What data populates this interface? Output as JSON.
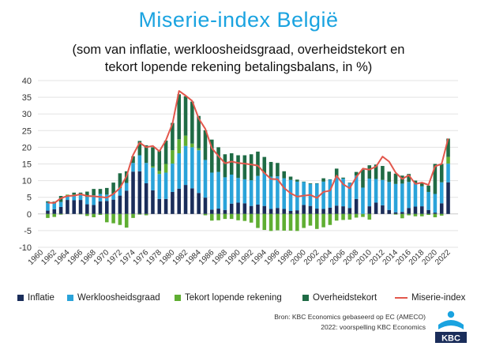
{
  "title": "Miserie-index België",
  "subtitle_line1": "(som van inflatie, werkloosheidsgraad, overheidstekort en",
  "subtitle_line2": "tekort lopende rekening betalingsbalans, in %)",
  "source_line1": "Bron: KBC Economics gebaseerd op EC (AMECO)",
  "source_line2": "2022: voorspelling KBC Economics",
  "logo_text": "KBC",
  "colors": {
    "inflatie": "#1a2d5a",
    "werkloosheid": "#2aa3d9",
    "tekort_lopende": "#5fae32",
    "overheid": "#1f6b45",
    "miserie": "#e2574c",
    "title": "#1aa3e0"
  },
  "chart_data": {
    "type": "bar",
    "stacked": true,
    "ylim": [
      -10,
      40
    ],
    "yticks": [
      -10,
      -5,
      0,
      5,
      10,
      15,
      20,
      25,
      30,
      35,
      40
    ],
    "grid": true,
    "legend_position": "bottom",
    "x_tick_labels": [
      "1960",
      "1962",
      "1964",
      "1966",
      "1968",
      "1970",
      "1972",
      "1974",
      "1976",
      "1978",
      "1980",
      "1982",
      "1984",
      "1986",
      "1988",
      "1990",
      "1992",
      "1994",
      "1996",
      "1998",
      "2000",
      "2002",
      "2004",
      "2006",
      "2008",
      "2010",
      "2012",
      "2014",
      "2016",
      "2018",
      "2020",
      "2022"
    ],
    "x": [
      1961,
      1962,
      1963,
      1964,
      1965,
      1966,
      1967,
      1968,
      1969,
      1970,
      1971,
      1972,
      1973,
      1974,
      1975,
      1976,
      1977,
      1978,
      1979,
      1980,
      1981,
      1982,
      1983,
      1984,
      1985,
      1986,
      1987,
      1988,
      1989,
      1990,
      1991,
      1992,
      1993,
      1994,
      1995,
      1996,
      1997,
      1998,
      1999,
      2000,
      2001,
      2002,
      2003,
      2004,
      2005,
      2006,
      2007,
      2008,
      2009,
      2010,
      2011,
      2012,
      2013,
      2014,
      2015,
      2016,
      2017,
      2018,
      2019,
      2020,
      2021,
      2022
    ],
    "series": [
      {
        "name": "Inflatie",
        "values": [
          1.0,
          1.4,
          2.1,
          4.2,
          4.1,
          4.2,
          2.9,
          2.7,
          3.8,
          3.9,
          4.3,
          5.5,
          7.0,
          12.7,
          12.8,
          9.2,
          7.1,
          4.5,
          4.5,
          6.6,
          7.6,
          8.7,
          7.7,
          6.3,
          4.9,
          1.3,
          1.6,
          1.2,
          3.1,
          3.4,
          3.2,
          2.4,
          2.8,
          2.4,
          1.5,
          1.8,
          1.5,
          0.9,
          1.1,
          2.7,
          2.4,
          1.6,
          1.5,
          1.9,
          2.5,
          2.3,
          1.8,
          4.5,
          0.0,
          2.3,
          3.4,
          2.6,
          1.2,
          0.5,
          0.6,
          1.8,
          2.2,
          2.3,
          1.2,
          0.4,
          3.2,
          9.5
        ]
      },
      {
        "name": "Werkloosheidsgraad",
        "values": [
          2.4,
          1.8,
          1.5,
          1.3,
          1.5,
          1.6,
          2.2,
          2.9,
          2.2,
          1.9,
          1.7,
          2.3,
          2.3,
          2.6,
          4.8,
          6.1,
          6.8,
          7.5,
          7.9,
          8.5,
          10.6,
          11.7,
          12.3,
          12.8,
          11.3,
          11.1,
          11.0,
          9.8,
          8.7,
          7.4,
          7.2,
          7.7,
          8.6,
          9.8,
          9.7,
          9.5,
          9.2,
          9.3,
          8.6,
          6.9,
          6.6,
          7.5,
          8.2,
          8.4,
          8.5,
          8.3,
          7.5,
          7.0,
          7.9,
          8.3,
          7.1,
          7.6,
          8.4,
          8.5,
          8.5,
          7.8,
          7.1,
          6.0,
          5.4,
          5.6,
          6.3,
          5.6
        ]
      },
      {
        "name": "Tekort lopende rekening",
        "values": [
          -1.2,
          -0.9,
          -0.2,
          0.3,
          0.2,
          -0.1,
          -0.6,
          -1.0,
          -0.3,
          -2.5,
          -2.8,
          -3.3,
          -4.1,
          -1.2,
          -0.2,
          -0.4,
          0.4,
          0.9,
          2.6,
          4.0,
          4.2,
          3.1,
          1.1,
          0.6,
          -0.4,
          -2.0,
          -1.9,
          -1.5,
          -1.5,
          -1.9,
          -2.1,
          -2.6,
          -4.2,
          -4.8,
          -5.1,
          -4.9,
          -5.0,
          -5.0,
          -5.1,
          -4.2,
          -3.5,
          -4.5,
          -4.0,
          -3.3,
          -2.0,
          -1.8,
          -1.7,
          -1.1,
          -0.9,
          -1.7,
          0.0,
          0.0,
          0.0,
          -0.2,
          -1.3,
          -0.4,
          -0.7,
          -0.7,
          -0.3,
          -1.0,
          -0.5,
          2.0
        ]
      },
      {
        "name": "Overheidstekort",
        "values": [
          0.4,
          0.5,
          1.8,
          0.0,
          0.6,
          0.6,
          1.6,
          1.9,
          1.5,
          2.0,
          3.4,
          4.4,
          3.5,
          2.0,
          4.3,
          5.3,
          5.7,
          6.1,
          7.0,
          8.2,
          13.5,
          11.8,
          12.6,
          9.7,
          8.9,
          9.9,
          7.4,
          6.9,
          6.4,
          6.8,
          7.2,
          7.8,
          7.3,
          4.9,
          4.4,
          4.0,
          2.1,
          1.0,
          0.6,
          0.1,
          0.2,
          0.1,
          1.0,
          0.1,
          2.6,
          0.3,
          0.1,
          1.1,
          5.4,
          4.0,
          4.3,
          4.2,
          3.1,
          3.1,
          2.4,
          2.4,
          0.7,
          0.9,
          1.9,
          9.0,
          5.5,
          5.5
        ]
      },
      {
        "name": "Miserie-index",
        "type": "line",
        "values": [
          3.4,
          3.3,
          4.7,
          5.4,
          5.5,
          5.9,
          5.4,
          5.3,
          5.1,
          4.9,
          6.0,
          7.8,
          11.3,
          17.7,
          21.4,
          20.0,
          20.4,
          18.8,
          22.1,
          27.1,
          36.9,
          35.5,
          33.9,
          28.6,
          25.5,
          19.7,
          17.4,
          15.2,
          15.7,
          15.3,
          15.1,
          14.8,
          14.5,
          12.3,
          10.5,
          10.4,
          7.8,
          6.2,
          5.2,
          5.5,
          5.7,
          4.8,
          6.6,
          7.0,
          11.5,
          8.9,
          7.7,
          11.1,
          13.6,
          13.3,
          14.2,
          17.2,
          15.7,
          12.4,
          10.5,
          11.6,
          9.0,
          9.4,
          8.7,
          14.3,
          15.0,
          22.6
        ]
      }
    ]
  },
  "legend": [
    {
      "label": "Inflatie",
      "color": "#1a2d5a",
      "kind": "box"
    },
    {
      "label": "Werkloosheidsgraad",
      "color": "#2aa3d9",
      "kind": "box"
    },
    {
      "label": "Tekort lopende rekening",
      "color": "#5fae32",
      "kind": "box"
    },
    {
      "label": "Overheidstekort",
      "color": "#1f6b45",
      "kind": "box"
    },
    {
      "label": "Miserie-index",
      "color": "#e2574c",
      "kind": "line"
    }
  ]
}
